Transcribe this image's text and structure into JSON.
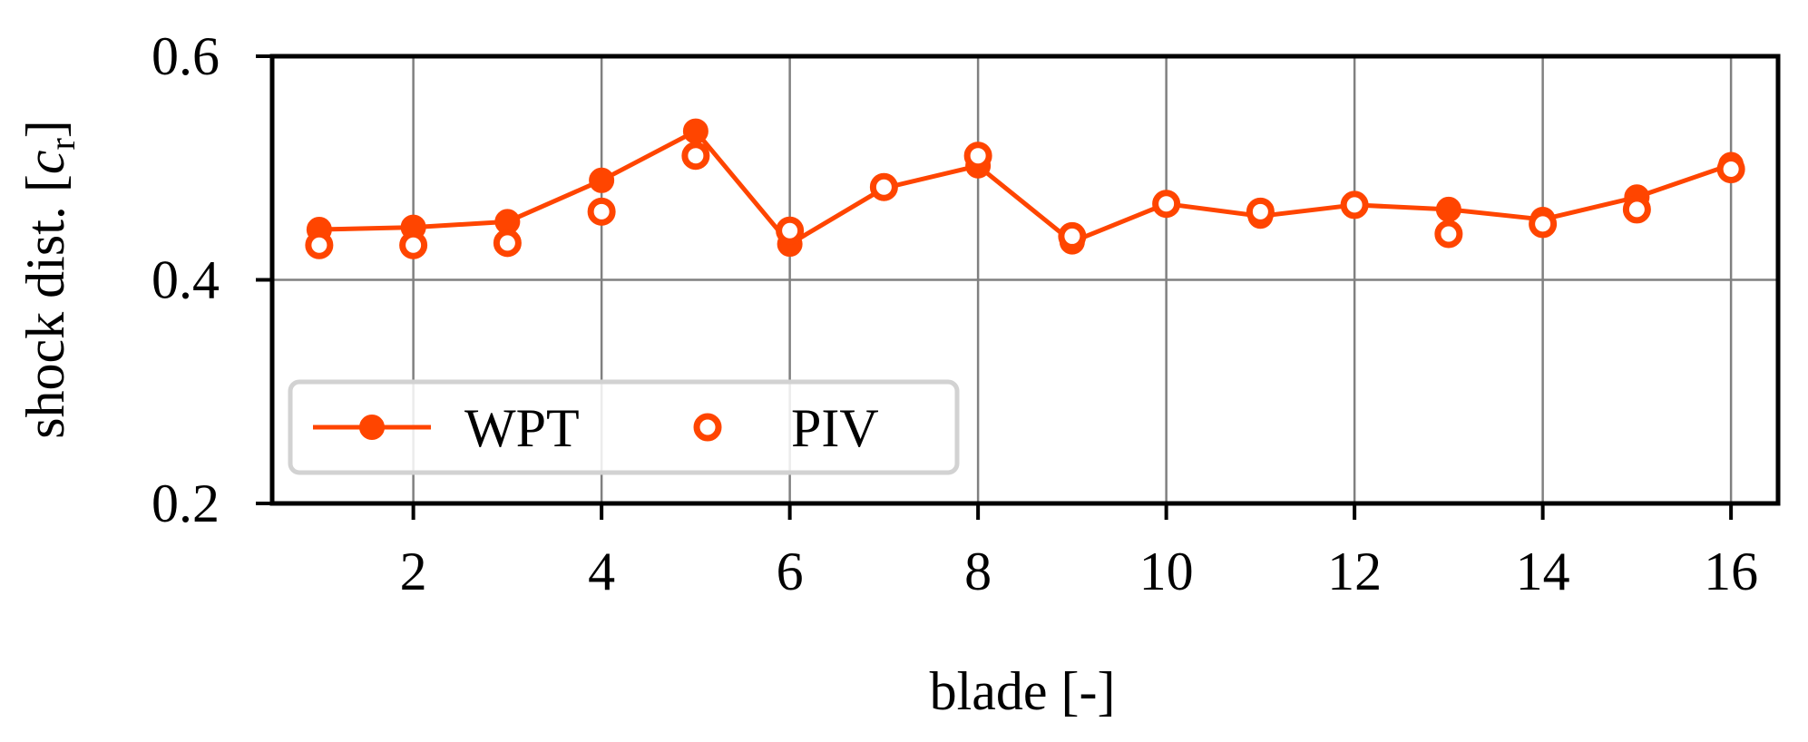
{
  "chart_data": {
    "type": "line",
    "xlabel": "blade [-]",
    "ylabel": {
      "main": "shock dist. [",
      "var": "c",
      "sub": "r",
      "close": "]"
    },
    "xlim": [
      0.5,
      16.5
    ],
    "ylim": [
      0.2,
      0.6
    ],
    "xticks": [
      2,
      4,
      6,
      8,
      10,
      12,
      14,
      16
    ],
    "yticks": [
      0.2,
      0.4,
      0.6
    ],
    "ytick_labels": [
      "0.2",
      "0.4",
      "0.6"
    ],
    "grid": true,
    "legend_position": "lower-left",
    "color": "#FF4500",
    "series": [
      {
        "name": "WPT",
        "style": "line-filled-markers",
        "x": [
          1,
          2,
          3,
          4,
          5,
          6,
          7,
          8,
          9,
          10,
          11,
          12,
          13,
          14,
          15,
          16
        ],
        "values": [
          0.445,
          0.447,
          0.452,
          0.489,
          0.533,
          0.432,
          0.482,
          0.502,
          0.434,
          0.468,
          0.457,
          0.467,
          0.463,
          0.454,
          0.474,
          0.503
        ]
      },
      {
        "name": "PIV",
        "style": "open-markers",
        "x": [
          1,
          2,
          3,
          4,
          5,
          6,
          7,
          8,
          9,
          10,
          11,
          12,
          13,
          14,
          15,
          16
        ],
        "values": [
          0.431,
          0.431,
          0.433,
          0.461,
          0.511,
          0.444,
          0.483,
          0.511,
          0.439,
          0.468,
          0.461,
          0.467,
          0.441,
          0.45,
          0.463,
          0.499
        ]
      }
    ]
  }
}
